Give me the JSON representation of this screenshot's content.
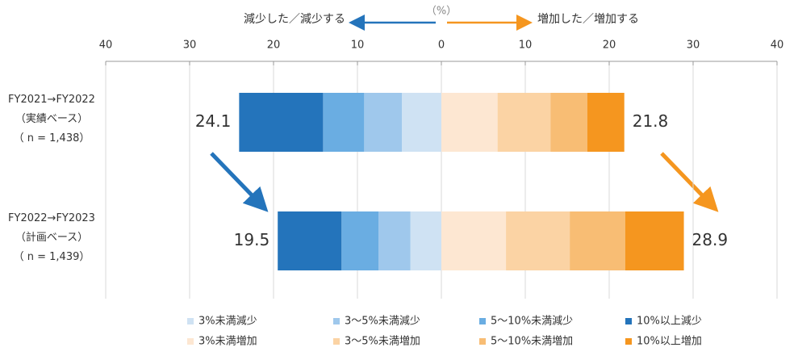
{
  "chart_data": {
    "type": "diverging_stacked_bar",
    "header": {
      "left": "減少した／減少する",
      "unit": "（%）",
      "right": "増加した／増加する"
    },
    "categories": [
      "FY2021→FY2022",
      "FY2022→FY2023"
    ],
    "category_notes": [
      [
        "（実績ベース）",
        "（ n = 1,438）"
      ],
      [
        "（計画ベース）",
        "（ n = 1,439）"
      ]
    ],
    "xlim": [
      -40,
      40
    ],
    "xticks": [
      {
        "value": -40,
        "label": "40"
      },
      {
        "value": -30,
        "label": "30"
      },
      {
        "value": -20,
        "label": "20"
      },
      {
        "value": -10,
        "label": "10"
      },
      0,
      10,
      20,
      30,
      40
    ],
    "grid": true,
    "series": [
      {
        "name": "3%未満減少",
        "color": "#cfe2f3",
        "values": [
          -4.7,
          -3.7
        ]
      },
      {
        "name": "3〜5%未満減少",
        "color": "#9fc8ec",
        "values": [
          -4.5,
          -3.8
        ]
      },
      {
        "name": "5〜10%未満減少",
        "color": "#6aade2",
        "values": [
          -4.9,
          -4.4
        ]
      },
      {
        "name": "10%以上減少",
        "color": "#2474bb",
        "values": [
          -10.0,
          -7.6
        ]
      },
      {
        "name": "3%未満増加",
        "color": "#fde7d2",
        "values": [
          6.7,
          7.7
        ]
      },
      {
        "name": "3〜5%未満増加",
        "color": "#fbd3a4",
        "values": [
          6.3,
          7.6
        ]
      },
      {
        "name": "5〜10%未満増加",
        "color": "#f8bd74",
        "values": [
          4.4,
          6.6
        ]
      },
      {
        "name": "10%以上増加",
        "color": "#f5961f",
        "values": [
          4.4,
          7.0
        ]
      }
    ],
    "decrease_totals": [
      24.1,
      19.5
    ],
    "increase_totals": [
      21.8,
      28.9
    ]
  }
}
